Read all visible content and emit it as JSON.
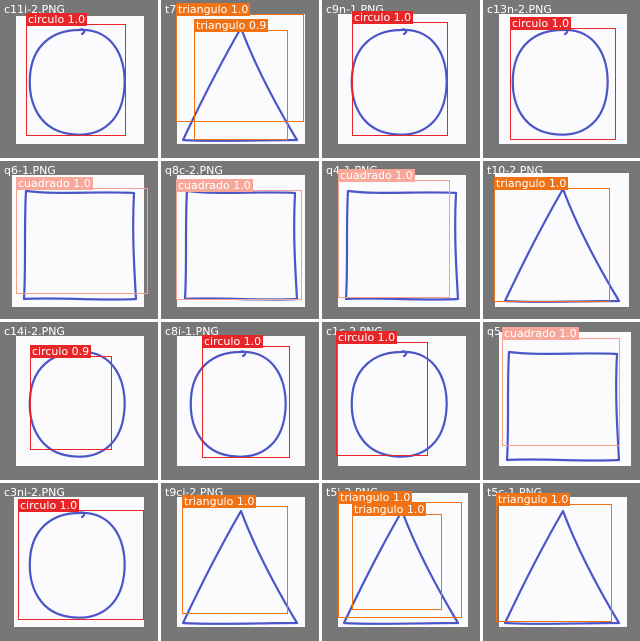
{
  "colors": {
    "circulo": "#e8262a",
    "triangulo": "#f07214",
    "cuadrado": "#f59f8e",
    "cuadrado_label": "#f8a89a",
    "ink": "#4a55c8",
    "tile_bg": "#777777"
  },
  "tiles": [
    {
      "filename": "c11i-2.PNG",
      "shape": "circle",
      "detections": [
        {
          "cls": "circulo",
          "label": "circulo 1.0"
        }
      ]
    },
    {
      "filename": "t7",
      "shape": "triangle",
      "detections": [
        {
          "cls": "triangulo",
          "label": "triangulo 1.0"
        },
        {
          "cls": "triangulo",
          "label": "triangulo 0.9"
        }
      ]
    },
    {
      "filename": "c9n-1.PNG",
      "shape": "circle",
      "detections": [
        {
          "cls": "circulo",
          "label": "circulo 1.0"
        }
      ]
    },
    {
      "filename": "c13n-2.PNG",
      "shape": "circle",
      "detections": [
        {
          "cls": "circulo",
          "label": "circulo 1.0"
        }
      ]
    },
    {
      "filename": "q6-1.PNG",
      "shape": "square",
      "detections": [
        {
          "cls": "cuadrado",
          "label": "cuadrado 1.0"
        }
      ]
    },
    {
      "filename": "q8c-2.PNG",
      "shape": "square",
      "detections": [
        {
          "cls": "cuadrado",
          "label": "cuadrado 1.0"
        }
      ]
    },
    {
      "filename": "q4-1.PNG",
      "shape": "square",
      "detections": [
        {
          "cls": "cuadrado",
          "label": "cuadrado 1.0"
        }
      ]
    },
    {
      "filename": "t10-2.PNG",
      "shape": "triangle",
      "detections": [
        {
          "cls": "triangulo",
          "label": "triangulo 1.0"
        }
      ]
    },
    {
      "filename": "c14i-2.PNG",
      "shape": "circle",
      "detections": [
        {
          "cls": "circulo",
          "label": "circulo 0.9"
        }
      ]
    },
    {
      "filename": "c8i-1.PNG",
      "shape": "circle",
      "detections": [
        {
          "cls": "circulo",
          "label": "circulo 1.0"
        }
      ]
    },
    {
      "filename": "c1c-2.PNG",
      "shape": "circle",
      "detections": [
        {
          "cls": "circulo",
          "label": "circulo 1.0"
        }
      ]
    },
    {
      "filename": "q5",
      "shape": "square",
      "detections": [
        {
          "cls": "cuadrado",
          "label": "cuadrado 1.0"
        }
      ]
    },
    {
      "filename": "c3ni-2.PNG",
      "shape": "circle",
      "detections": [
        {
          "cls": "circulo",
          "label": "circulo 1.0"
        }
      ]
    },
    {
      "filename": "t9ci-2.PNG",
      "shape": "triangle",
      "detections": [
        {
          "cls": "triangulo",
          "label": "triangulo 1.0"
        }
      ]
    },
    {
      "filename": "t5i-2.PNG",
      "shape": "triangle",
      "detections": [
        {
          "cls": "triangulo",
          "label": "triangulo 1.0"
        },
        {
          "cls": "triangulo",
          "label": "triangulo 1.0"
        }
      ]
    },
    {
      "filename": "t5c-1.PNG",
      "shape": "triangle",
      "detections": [
        {
          "cls": "triangulo",
          "label": "triangulo 1.0"
        }
      ]
    }
  ]
}
